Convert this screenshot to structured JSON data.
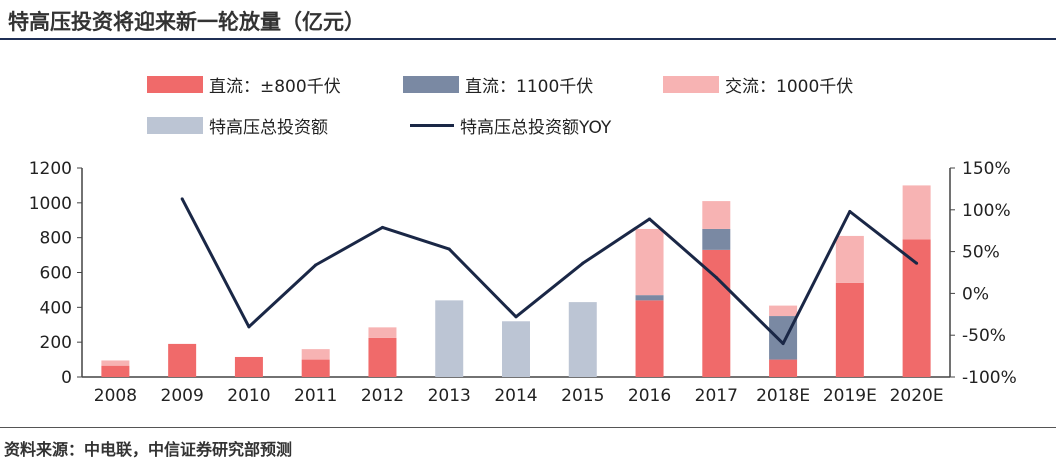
{
  "title": "特高压投资将迎来新一轮放量（亿元）",
  "source": "资料来源：中电联，中信证券研究部预测",
  "legend": [
    {
      "key": "dc800",
      "label": "直流：±800千伏",
      "color": "#f06a6a",
      "kind": "bar"
    },
    {
      "key": "dc1100",
      "label": "直流：1100千伏",
      "color": "#7a89a3",
      "kind": "bar"
    },
    {
      "key": "ac1000",
      "label": "交流：1000千伏",
      "color": "#f7b3b3",
      "kind": "bar"
    },
    {
      "key": "total",
      "label": "特高压总投资额",
      "color": "#bcc5d4",
      "kind": "bar"
    },
    {
      "key": "yoy",
      "label": "特高压总投资额YOY",
      "color": "#1a2746",
      "kind": "line"
    }
  ],
  "chart_data": {
    "type": "bar",
    "categories": [
      "2008",
      "2009",
      "2010",
      "2011",
      "2012",
      "2013",
      "2014",
      "2015",
      "2016",
      "2017",
      "2018E",
      "2019E",
      "2020E"
    ],
    "series": [
      {
        "name": "直流：±800千伏",
        "stack": "a",
        "values": [
          65,
          190,
          115,
          100,
          225,
          0,
          0,
          0,
          440,
          730,
          100,
          540,
          790
        ]
      },
      {
        "name": "直流：1100千伏",
        "stack": "a",
        "values": [
          0,
          0,
          0,
          0,
          0,
          0,
          0,
          0,
          30,
          120,
          250,
          0,
          0
        ]
      },
      {
        "name": "交流：1000千伏",
        "stack": "a",
        "values": [
          30,
          0,
          0,
          60,
          60,
          0,
          0,
          0,
          380,
          160,
          60,
          270,
          310
        ]
      },
      {
        "name": "特高压总投资额",
        "stack": "a",
        "values": [
          0,
          0,
          0,
          0,
          0,
          440,
          320,
          430,
          0,
          0,
          0,
          0,
          0
        ]
      },
      {
        "name": "特高压总投资额YOY",
        "axis": "right",
        "type": "line",
        "values": [
          null,
          113,
          -40,
          34,
          79,
          53,
          -28,
          36,
          89,
          19,
          -60,
          98,
          36
        ]
      }
    ],
    "y_left": {
      "min": 0,
      "max": 1200,
      "ticks": [
        "0",
        "200",
        "400",
        "600",
        "800",
        "1000",
        "1200"
      ]
    },
    "y_right": {
      "min": -100,
      "max": 150,
      "ticks": [
        "-100%",
        "-50%",
        "0%",
        "50%",
        "100%",
        "150%"
      ]
    },
    "grid": false,
    "legend_position": "top"
  }
}
